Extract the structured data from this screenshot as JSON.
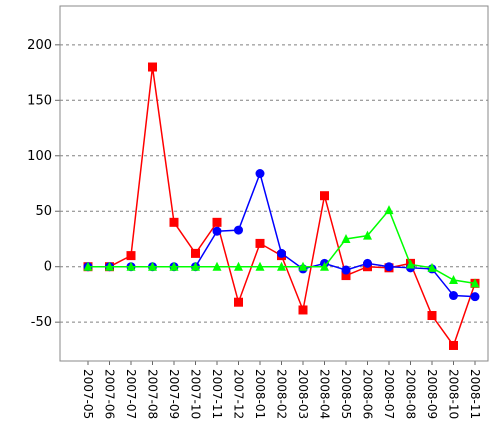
{
  "chart_data": {
    "type": "line",
    "title": "",
    "xlabel": "",
    "ylabel": "",
    "ylim": [
      -85,
      235
    ],
    "yticks": [
      200,
      150,
      100,
      50,
      0,
      -50
    ],
    "grid": true,
    "legend": "none",
    "x": [
      "2007-05",
      "2007-06",
      "2007-07",
      "2007-08",
      "2007-09",
      "2007-10",
      "2007-11",
      "2007-12",
      "2008-01",
      "2008-02",
      "2008-03",
      "2008-04",
      "2008-05",
      "2008-06",
      "2008-07",
      "2008-08",
      "2008-09",
      "2008-10",
      "2008-11"
    ],
    "series": [
      {
        "color": "#ff0000",
        "marker": "square",
        "values": [
          0,
          0,
          10,
          180,
          40,
          12,
          40,
          -32,
          21,
          10,
          -39,
          64,
          -8,
          0,
          -1,
          3,
          -44,
          -71,
          -15
        ]
      },
      {
        "color": "#0000ff",
        "marker": "circle",
        "values": [
          0,
          0,
          0,
          0,
          0,
          0,
          32,
          33,
          84,
          12,
          -2,
          3,
          -3,
          3,
          0,
          -1,
          -2,
          -26,
          -27
        ]
      },
      {
        "color": "#00ff00",
        "marker": "triangle",
        "values": [
          0,
          0,
          0,
          0,
          0,
          0,
          0,
          0,
          0,
          0,
          0,
          0,
          25,
          28,
          51,
          2,
          -1,
          -12,
          -15
        ]
      }
    ]
  }
}
